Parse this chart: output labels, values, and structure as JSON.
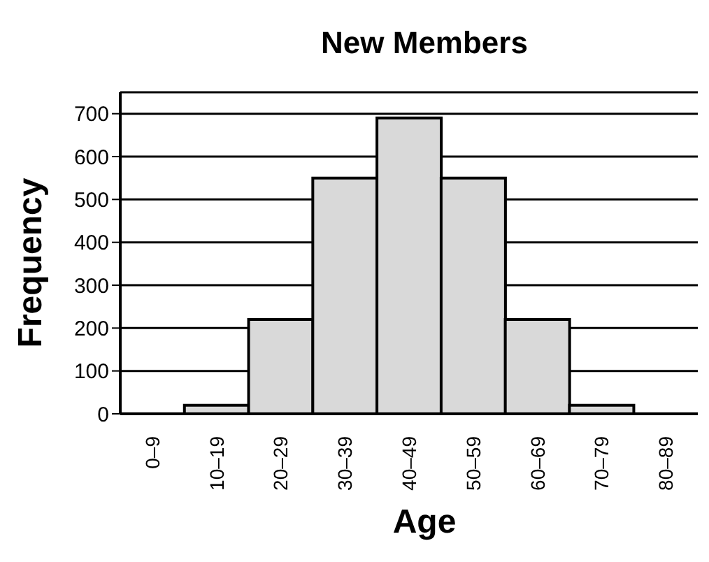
{
  "chart_data": {
    "type": "bar",
    "title": "New Members",
    "xlabel": "Age",
    "ylabel": "Frequency",
    "categories": [
      "0–9",
      "10–19",
      "20–29",
      "30–39",
      "40–49",
      "50–59",
      "60–69",
      "70–79",
      "80–89"
    ],
    "values": [
      0,
      20,
      220,
      550,
      690,
      550,
      220,
      20,
      0
    ],
    "color": "#d9d9d9",
    "ylim": [
      0,
      750
    ],
    "yticks": [
      0,
      100,
      200,
      300,
      400,
      500,
      600,
      700
    ],
    "grid": "y",
    "legend": false
  }
}
